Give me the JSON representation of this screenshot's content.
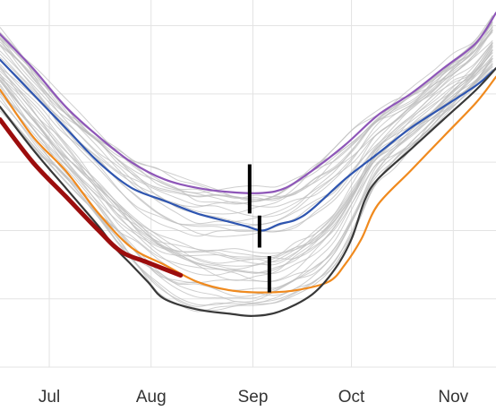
{
  "chart_data": {
    "type": "line",
    "title": "",
    "xlabel": "",
    "ylabel": "",
    "x_ticks": [
      "Jul",
      "Aug",
      "Sep",
      "Oct",
      "Nov"
    ],
    "x_tick_days": [
      0,
      31,
      62,
      92,
      123
    ],
    "x_range_days": [
      -15,
      136
    ],
    "y_range": [
      0,
      8.6
    ],
    "y_gridlines": [
      0,
      1.6,
      3.2,
      4.8,
      6.4,
      8.0
    ],
    "grid": true,
    "legend": "none",
    "background_series_count": 40,
    "background_color": "#bdbdbd",
    "series": [
      {
        "color": "#8e56b8",
        "points": [
          [
            -15,
            7.8
          ],
          [
            -5,
            7.0
          ],
          [
            5,
            6.1
          ],
          [
            15,
            5.4
          ],
          [
            25,
            4.8
          ],
          [
            35,
            4.4
          ],
          [
            45,
            4.2
          ],
          [
            55,
            4.1
          ],
          [
            65,
            4.08
          ],
          [
            72,
            4.2
          ],
          [
            80,
            4.6
          ],
          [
            90,
            5.2
          ],
          [
            100,
            5.9
          ],
          [
            110,
            6.4
          ],
          [
            120,
            7.0
          ],
          [
            130,
            7.6
          ],
          [
            136,
            8.3
          ]
        ]
      },
      {
        "color": "#2e55b0",
        "points": [
          [
            -15,
            7.2
          ],
          [
            -5,
            6.4
          ],
          [
            5,
            5.6
          ],
          [
            15,
            4.8
          ],
          [
            25,
            4.2
          ],
          [
            35,
            3.9
          ],
          [
            45,
            3.6
          ],
          [
            55,
            3.4
          ],
          [
            60,
            3.3
          ],
          [
            65,
            3.2
          ],
          [
            70,
            3.35
          ],
          [
            75,
            3.45
          ],
          [
            80,
            3.7
          ],
          [
            90,
            4.4
          ],
          [
            100,
            5.0
          ],
          [
            110,
            5.6
          ],
          [
            120,
            6.1
          ],
          [
            130,
            6.6
          ],
          [
            136,
            7.0
          ]
        ]
      },
      {
        "color": "#f08a1e",
        "points": [
          [
            -15,
            6.5
          ],
          [
            -5,
            5.4
          ],
          [
            5,
            4.6
          ],
          [
            15,
            3.6
          ],
          [
            25,
            2.8
          ],
          [
            35,
            2.4
          ],
          [
            45,
            2.0
          ],
          [
            55,
            1.8
          ],
          [
            65,
            1.75
          ],
          [
            75,
            1.8
          ],
          [
            85,
            2.0
          ],
          [
            90,
            2.4
          ],
          [
            95,
            3.0
          ],
          [
            100,
            3.8
          ],
          [
            110,
            4.6
          ],
          [
            120,
            5.4
          ],
          [
            130,
            6.2
          ],
          [
            136,
            6.8
          ]
        ]
      },
      {
        "color": "#383838",
        "points": [
          [
            -15,
            6.1
          ],
          [
            -5,
            5.1
          ],
          [
            5,
            4.2
          ],
          [
            15,
            3.3
          ],
          [
            20,
            2.8
          ],
          [
            25,
            2.4
          ],
          [
            30,
            2.0
          ],
          [
            35,
            1.6
          ],
          [
            45,
            1.35
          ],
          [
            55,
            1.25
          ],
          [
            62,
            1.2
          ],
          [
            70,
            1.3
          ],
          [
            80,
            1.7
          ],
          [
            87,
            2.3
          ],
          [
            92,
            3.0
          ],
          [
            96,
            3.9
          ],
          [
            100,
            4.4
          ],
          [
            110,
            5.1
          ],
          [
            120,
            5.8
          ],
          [
            130,
            6.5
          ],
          [
            136,
            7.0
          ]
        ]
      },
      {
        "color": "#9c0d0d",
        "points": [
          [
            -15,
            5.8
          ],
          [
            -5,
            4.8
          ],
          [
            5,
            4.0
          ],
          [
            15,
            3.2
          ],
          [
            22,
            2.7
          ],
          [
            30,
            2.45
          ],
          [
            40,
            2.15
          ]
        ]
      }
    ],
    "markers": [
      {
        "x": 61,
        "y_range": [
          3.6,
          4.75
        ]
      },
      {
        "x": 64,
        "y_range": [
          2.8,
          3.55
        ]
      },
      {
        "x": 67,
        "y_range": [
          1.75,
          2.6
        ]
      }
    ]
  }
}
